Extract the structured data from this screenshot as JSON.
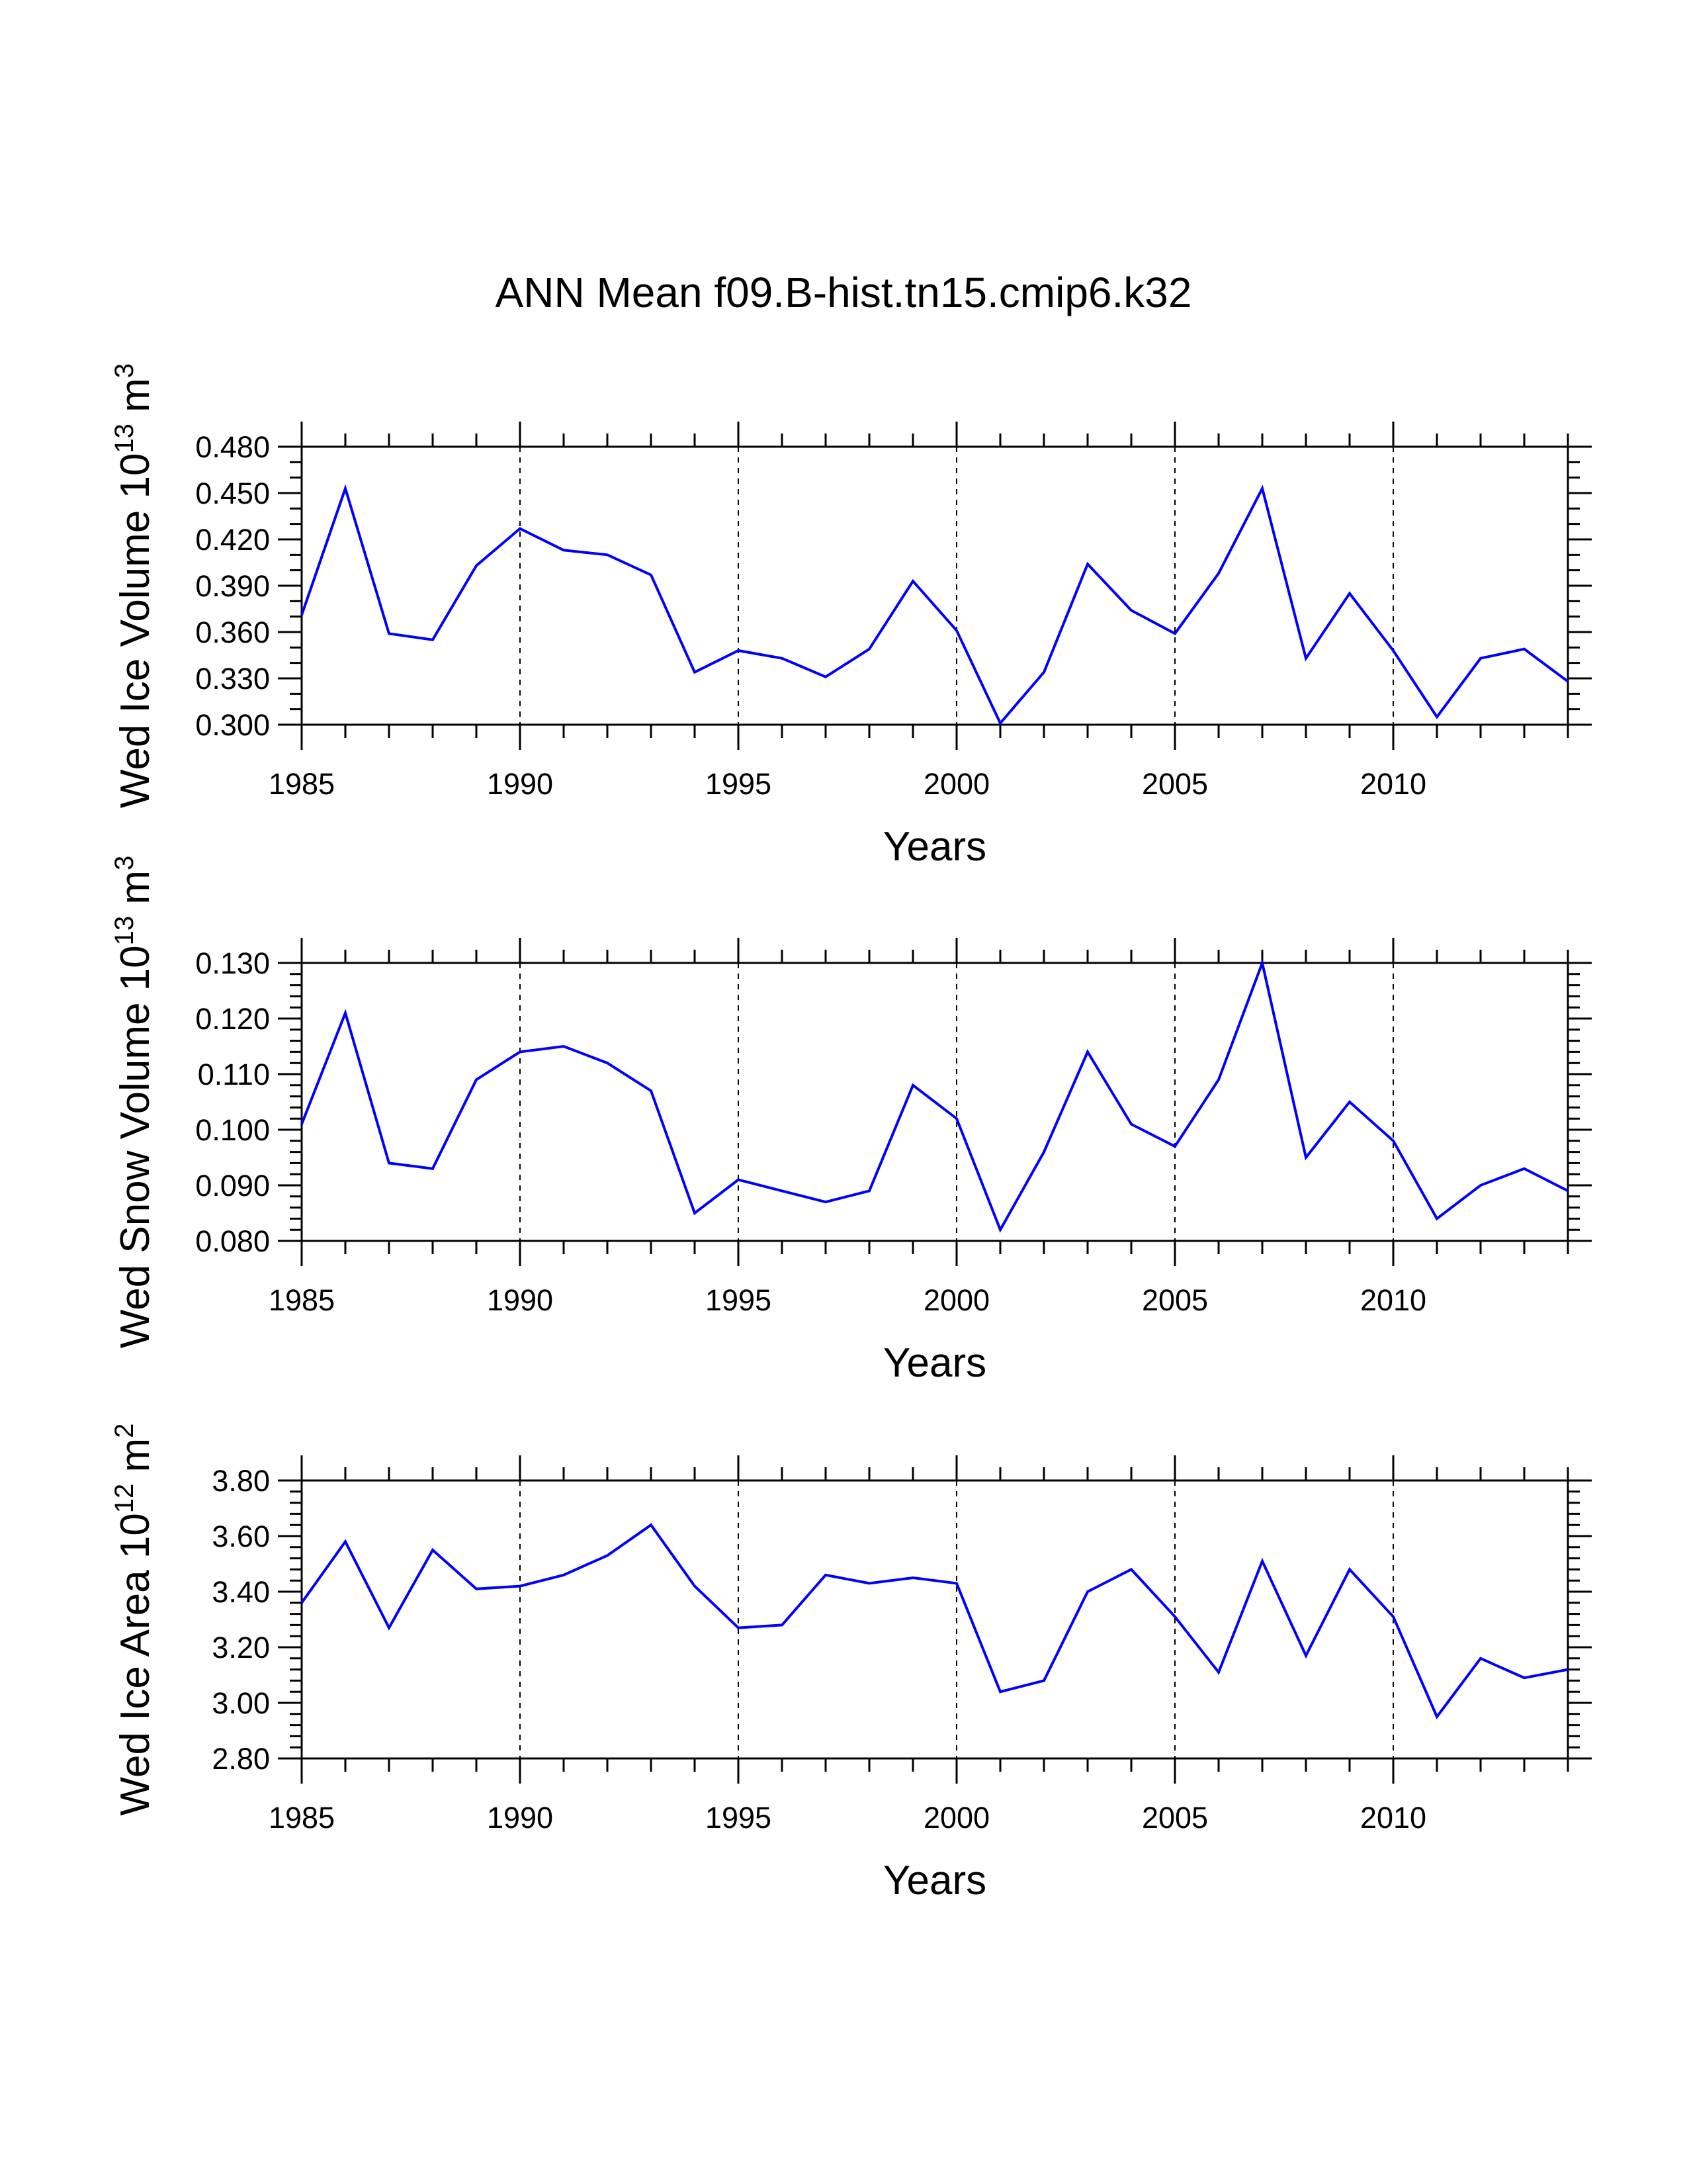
{
  "title": "ANN Mean f09.B-hist.tn15.cmip6.k32",
  "colors": {
    "line": "#0000ff",
    "axis": "#000000",
    "grid": "#000000"
  },
  "chart_data": [
    {
      "type": "line",
      "xlabel": "Years",
      "ylabel": {
        "main": "Wed Ice Volume 10",
        "exp": "13",
        "unit": " m",
        "unit_exp": "3"
      },
      "xlim": [
        1985,
        2014
      ],
      "ylim": [
        0.3,
        0.48
      ],
      "xticks": [
        1985,
        1990,
        1995,
        2000,
        2005,
        2010
      ],
      "xtick_labels": [
        "1985",
        "1990",
        "1995",
        "2000",
        "2005",
        "2010"
      ],
      "yticks": [
        0.3,
        0.33,
        0.36,
        0.39,
        0.42,
        0.45,
        0.48
      ],
      "ytick_labels": [
        "0.300",
        "0.330",
        "0.360",
        "0.390",
        "0.420",
        "0.450",
        "0.480"
      ],
      "y_minor_step": 0.01,
      "grid_x": [
        1990,
        1995,
        2000,
        2005,
        2010
      ],
      "series": [
        {
          "x": [
            1985,
            1986,
            1987,
            1988,
            1989,
            1990,
            1991,
            1992,
            1993,
            1994,
            1995,
            1996,
            1997,
            1998,
            1999,
            2000,
            2001,
            2002,
            2003,
            2004,
            2005,
            2006,
            2007,
            2008,
            2009,
            2010,
            2011,
            2012,
            2013,
            2014
          ],
          "values": [
            0.371,
            0.453,
            0.359,
            0.355,
            0.403,
            0.427,
            0.413,
            0.41,
            0.397,
            0.334,
            0.348,
            0.343,
            0.331,
            0.349,
            0.393,
            0.361,
            0.301,
            0.334,
            0.404,
            0.374,
            0.359,
            0.398,
            0.453,
            0.343,
            0.385,
            0.348,
            0.305,
            0.343,
            0.349,
            0.328
          ]
        }
      ]
    },
    {
      "type": "line",
      "xlabel": "Years",
      "ylabel": {
        "main": "Wed Snow Volume 10",
        "exp": "13",
        "unit": " m",
        "unit_exp": "3"
      },
      "xlim": [
        1985,
        2014
      ],
      "ylim": [
        0.08,
        0.13
      ],
      "xticks": [
        1985,
        1990,
        1995,
        2000,
        2005,
        2010
      ],
      "xtick_labels": [
        "1985",
        "1990",
        "1995",
        "2000",
        "2005",
        "2010"
      ],
      "yticks": [
        0.08,
        0.09,
        0.1,
        0.11,
        0.12,
        0.13
      ],
      "ytick_labels": [
        "0.080",
        "0.090",
        "0.100",
        "0.110",
        "0.120",
        "0.130"
      ],
      "y_minor_step": 0.002,
      "grid_x": [
        1990,
        1995,
        2000,
        2005,
        2010
      ],
      "series": [
        {
          "x": [
            1985,
            1986,
            1987,
            1988,
            1989,
            1990,
            1991,
            1992,
            1993,
            1994,
            1995,
            1996,
            1997,
            1998,
            1999,
            2000,
            2001,
            2002,
            2003,
            2004,
            2005,
            2006,
            2007,
            2008,
            2009,
            2010,
            2011,
            2012,
            2013,
            2014
          ],
          "values": [
            0.101,
            0.121,
            0.094,
            0.093,
            0.109,
            0.114,
            0.115,
            0.112,
            0.107,
            0.085,
            0.091,
            0.089,
            0.087,
            0.089,
            0.108,
            0.102,
            0.082,
            0.096,
            0.114,
            0.101,
            0.097,
            0.109,
            0.13,
            0.095,
            0.105,
            0.098,
            0.084,
            0.09,
            0.093,
            0.089
          ]
        }
      ]
    },
    {
      "type": "line",
      "xlabel": "Years",
      "ylabel": {
        "main": "Wed Ice Area 10",
        "exp": "12",
        "unit": " m",
        "unit_exp": "2"
      },
      "xlim": [
        1985,
        2014
      ],
      "ylim": [
        2.8,
        3.8
      ],
      "xticks": [
        1985,
        1990,
        1995,
        2000,
        2005,
        2010
      ],
      "xtick_labels": [
        "1985",
        "1990",
        "1995",
        "2000",
        "2005",
        "2010"
      ],
      "yticks": [
        2.8,
        3.0,
        3.2,
        3.4,
        3.6,
        3.8
      ],
      "ytick_labels": [
        "2.80",
        "3.00",
        "3.20",
        "3.40",
        "3.60",
        "3.80"
      ],
      "y_minor_step": 0.04,
      "grid_x": [
        1990,
        1995,
        2000,
        2005,
        2010
      ],
      "series": [
        {
          "x": [
            1985,
            1986,
            1987,
            1988,
            1989,
            1990,
            1991,
            1992,
            1993,
            1994,
            1995,
            1996,
            1997,
            1998,
            1999,
            2000,
            2001,
            2002,
            2003,
            2004,
            2005,
            2006,
            2007,
            2008,
            2009,
            2010,
            2011,
            2012,
            2013,
            2014
          ],
          "values": [
            3.36,
            3.58,
            3.27,
            3.55,
            3.41,
            3.42,
            3.46,
            3.53,
            3.64,
            3.42,
            3.27,
            3.28,
            3.46,
            3.43,
            3.45,
            3.43,
            3.04,
            3.08,
            3.4,
            3.48,
            3.31,
            3.11,
            3.51,
            3.17,
            3.48,
            3.31,
            2.95,
            3.16,
            3.09,
            3.12
          ]
        }
      ]
    }
  ]
}
